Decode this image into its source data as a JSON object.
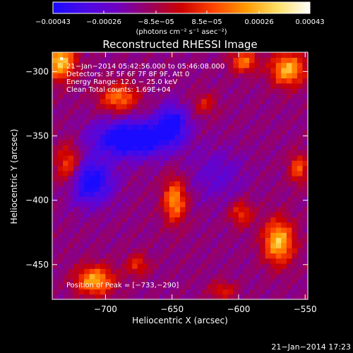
{
  "chart_data": {
    "type": "heatmap",
    "title": "Reconstructed RHESSI Image",
    "xlabel": "Heliocentric X (arcsec)",
    "ylabel": "Heliocentric Y (arcsec)",
    "xlim": [
      -740,
      -548
    ],
    "ylim": [
      -477,
      -285
    ],
    "xticks": [
      -700,
      -650,
      -600,
      -550
    ],
    "yticks": [
      -300,
      -350,
      -400,
      -450
    ],
    "xtick_labels": [
      "−700",
      "−650",
      "−600",
      "−550"
    ],
    "ytick_labels": [
      "−300",
      "−350",
      "−400",
      "−450"
    ],
    "colorbar": {
      "range": [
        -0.00043,
        0.00043
      ],
      "ticks": [
        -0.00043,
        -0.00026,
        -8.5e-05,
        8.5e-05,
        0.00026,
        0.00043
      ],
      "tick_labels": [
        "−0.00043",
        "−0.00026",
        "−8.5e−05",
        "8.5e−05",
        "0.00026",
        "0.00043"
      ],
      "unit_label": "(photons cm⁻² s⁻¹ asec⁻²)",
      "colors": [
        "#1a0bff",
        "#4b0ae6",
        "#7000c0",
        "#9a0060",
        "#cc0000",
        "#ff4400",
        "#ff9900",
        "#ffe066",
        "#ffffff"
      ]
    },
    "annotations": [
      "21−Jan−2014 05:42:56.000 to 05:46:08.000",
      "Detectors: 3F 5F 6F 7F 8F 9F, Att 0",
      "Energy Range: 12.0 − 25.0 keV",
      "Clean    Total counts: 1.69E+04"
    ],
    "peak_label": "Position of Peak = [−733,−290]",
    "peak_position": [
      -733,
      -290
    ],
    "sources": [
      {
        "x": -734,
        "y": -292,
        "amp": 0.00043,
        "sx": 8,
        "sy": 10
      },
      {
        "x": -690,
        "y": -320,
        "amp": 0.0003,
        "sx": 10,
        "sy": 8
      },
      {
        "x": -728,
        "y": -373,
        "amp": 0.00028,
        "sx": 7,
        "sy": 12
      },
      {
        "x": -648,
        "y": -400,
        "amp": 0.00035,
        "sx": 6,
        "sy": 12
      },
      {
        "x": -625,
        "y": -325,
        "amp": 0.00016,
        "sx": 6,
        "sy": 6
      },
      {
        "x": -563,
        "y": -298,
        "amp": 0.0004,
        "sx": 9,
        "sy": 9
      },
      {
        "x": -596,
        "y": -292,
        "amp": 0.0003,
        "sx": 7,
        "sy": 6
      },
      {
        "x": -570,
        "y": -432,
        "amp": 0.00042,
        "sx": 8,
        "sy": 12
      },
      {
        "x": -598,
        "y": -410,
        "amp": 0.00022,
        "sx": 6,
        "sy": 7
      },
      {
        "x": -708,
        "y": -462,
        "amp": 0.00038,
        "sx": 10,
        "sy": 8
      },
      {
        "x": -676,
        "y": -450,
        "amp": 0.0002,
        "sx": 6,
        "sy": 6
      },
      {
        "x": -555,
        "y": -375,
        "amp": 0.00026,
        "sx": 5,
        "sy": 8
      },
      {
        "x": -612,
        "y": -470,
        "amp": 0.00018,
        "sx": 7,
        "sy": 5
      },
      {
        "x": -680,
        "y": -352,
        "amp": -0.0004,
        "sx": 20,
        "sy": 10
      },
      {
        "x": -712,
        "y": -385,
        "amp": -0.00034,
        "sx": 12,
        "sy": 12
      },
      {
        "x": -650,
        "y": -340,
        "amp": -0.0003,
        "sx": 8,
        "sy": 10
      },
      {
        "x": -616,
        "y": -380,
        "amp": -0.00012,
        "sx": 14,
        "sy": 14
      }
    ],
    "background": -0.00014
  },
  "footer_timestamp": "21−Jan−2014 17:23"
}
